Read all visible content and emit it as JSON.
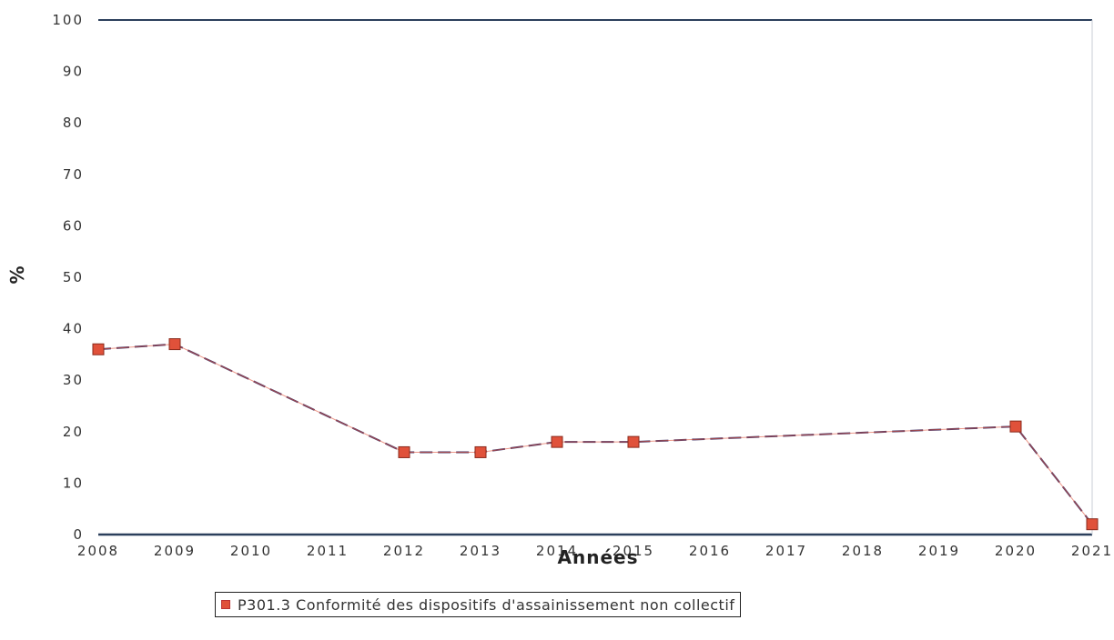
{
  "chart_data": {
    "type": "line",
    "title": "",
    "xlabel": "Années",
    "ylabel": "%",
    "x_tick_labels": [
      "2008",
      "2009",
      "2010",
      "2011",
      "2012",
      "2013",
      "2014",
      "2015",
      "2016",
      "2017",
      "2018",
      "2019",
      "2020",
      "2021"
    ],
    "y_tick_labels": [
      "0",
      "10",
      "20",
      "30",
      "40",
      "50",
      "60",
      "70",
      "80",
      "90",
      "100"
    ],
    "ylim": [
      0,
      100
    ],
    "grid": false,
    "legend_position": "bottom",
    "series": [
      {
        "name": "P301.3 Conformité des dispositifs d'assainissement non collectif",
        "color": "#e0513a",
        "line_color": "#4a3a6a",
        "points": [
          {
            "x": "2008",
            "y": 36
          },
          {
            "x": "2009",
            "y": 37
          },
          {
            "x": "2012",
            "y": 16
          },
          {
            "x": "2013",
            "y": 16
          },
          {
            "x": "2014",
            "y": 18
          },
          {
            "x": "2015",
            "y": 18
          },
          {
            "x": "2020",
            "y": 21
          },
          {
            "x": "2021",
            "y": 2
          }
        ]
      }
    ]
  }
}
